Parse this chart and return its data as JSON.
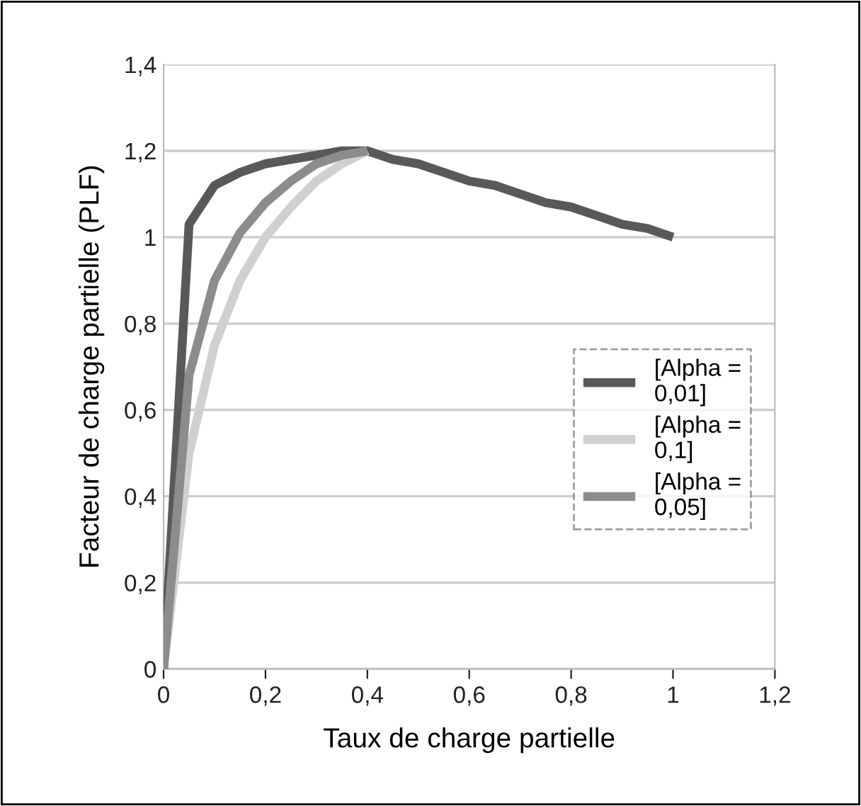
{
  "chart_data": {
    "type": "line",
    "xlabel": "Taux de charge partielle",
    "ylabel": "Facteur de charge partielle (PLF)",
    "xlim": [
      0,
      1.2
    ],
    "xticks": [
      0,
      {
        "value": 0.2,
        "label": "0,2"
      },
      {
        "value": 0.4,
        "label": "0,4"
      },
      {
        "value": 0.6,
        "label": "0,6"
      },
      {
        "value": 0.8,
        "label": "0,8"
      },
      1,
      {
        "value": 1.2,
        "label": "1,2"
      }
    ],
    "ylim": [
      0,
      1.4
    ],
    "yticks": [
      0,
      {
        "value": 0.2,
        "label": "0,2"
      },
      {
        "value": 0.4,
        "label": "0,4"
      },
      {
        "value": 0.6,
        "label": "0,6"
      },
      {
        "value": 0.8,
        "label": "0,8"
      },
      1,
      {
        "value": 1.2,
        "label": "1,2"
      },
      {
        "value": 1.4,
        "label": "1,4"
      }
    ],
    "grid": "y",
    "legend": "right",
    "marker": "none",
    "line_style": "solid",
    "series": [
      {
        "name": "[Alpha =\n0,01]",
        "color": "#595959",
        "x": [
          0,
          0.05,
          0.1,
          0.15,
          0.2,
          0.25,
          0.3,
          0.35,
          0.4,
          0.45,
          0.5,
          0.55,
          0.6,
          0.65,
          0.7,
          0.75,
          0.8,
          0.85,
          0.9,
          0.95,
          1.0
        ],
        "values": [
          0,
          1.03,
          1.12,
          1.15,
          1.17,
          1.18,
          1.19,
          1.2,
          1.2,
          1.18,
          1.17,
          1.15,
          1.13,
          1.12,
          1.1,
          1.08,
          1.07,
          1.05,
          1.03,
          1.02,
          1.0
        ]
      },
      {
        "name": "[Alpha =\n0,1]",
        "color": "#d0d0d0",
        "x": [
          0,
          0.05,
          0.1,
          0.15,
          0.2,
          0.25,
          0.3,
          0.35,
          0.4
        ],
        "values": [
          0,
          0.5,
          0.75,
          0.9,
          1.0,
          1.07,
          1.13,
          1.17,
          1.2
        ]
      },
      {
        "name": "[Alpha =\n0,05]",
        "color": "#8c8c8c",
        "x": [
          0,
          0.05,
          0.1,
          0.15,
          0.2,
          0.25,
          0.3,
          0.35,
          0.4
        ],
        "values": [
          0,
          0.68,
          0.9,
          1.01,
          1.08,
          1.13,
          1.17,
          1.19,
          1.2
        ]
      }
    ]
  }
}
